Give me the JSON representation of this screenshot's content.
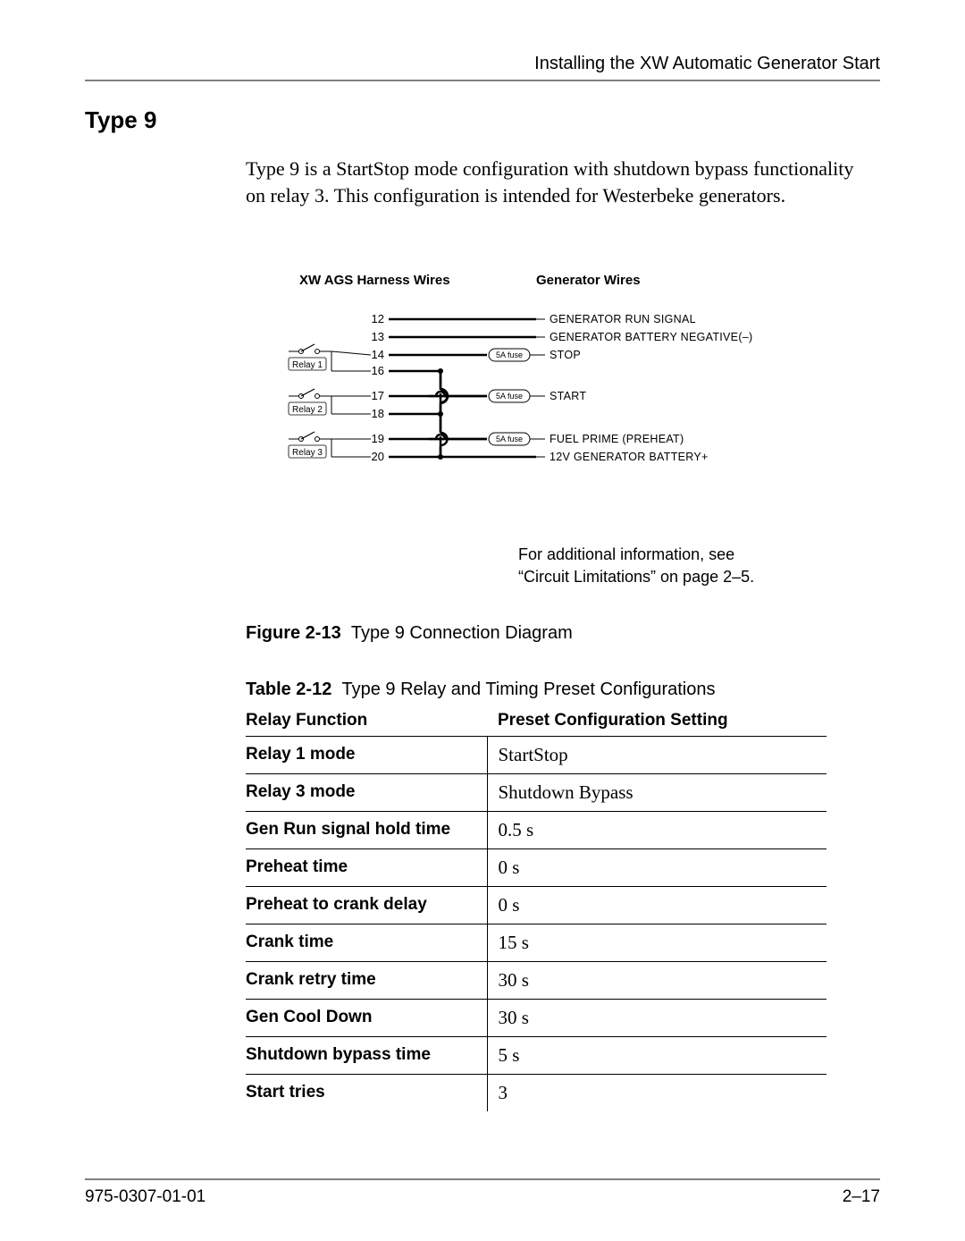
{
  "header": {
    "running_head": "Installing the XW Automatic Generator Start"
  },
  "section": {
    "heading": "Type 9",
    "paragraph": "Type 9 is a StartStop mode configuration with shutdown bypass functionality on relay 3. This configuration is intended for Westerbeke generators."
  },
  "diagram": {
    "left_header": "XW AGS Harness Wires",
    "right_header": "Generator Wires",
    "relays": [
      "Relay 1",
      "Relay 2",
      "Relay 3"
    ],
    "fuse_label": "5A fuse",
    "wires": [
      {
        "num": "12",
        "label": "GENERATOR RUN SIGNAL",
        "has_fuse": false
      },
      {
        "num": "13",
        "label": "GENERATOR BATTERY NEGATIVE(–)",
        "has_fuse": false
      },
      {
        "num": "14",
        "label": "STOP",
        "has_fuse": true
      },
      {
        "num": "16",
        "label": "",
        "has_fuse": false
      },
      {
        "num": "17",
        "label": "START",
        "has_fuse": true
      },
      {
        "num": "18",
        "label": "",
        "has_fuse": false
      },
      {
        "num": "19",
        "label": "FUEL PRIME (PREHEAT)",
        "has_fuse": true
      },
      {
        "num": "20",
        "label": "12V GENERATOR BATTERY+",
        "has_fuse": false
      }
    ],
    "colors": {
      "stroke": "#000000",
      "thin_stroke_width": 1,
      "thick_stroke_width": 2.5
    }
  },
  "note": {
    "line1": "For additional information, see",
    "line2": "“Circuit Limitations” on page 2–5."
  },
  "figure": {
    "prefix": "Figure 2-13",
    "title": "Type 9 Connection Diagram"
  },
  "table": {
    "prefix": "Table 2-12",
    "title": "Type 9 Relay and Timing Preset Configurations",
    "columns": [
      "Relay Function",
      "Preset Configuration Setting"
    ],
    "rows": [
      [
        "Relay 1 mode",
        "StartStop"
      ],
      [
        "Relay 3 mode",
        "Shutdown Bypass"
      ],
      [
        "Gen Run signal hold time",
        "0.5 s"
      ],
      [
        "Preheat time",
        "0 s"
      ],
      [
        "Preheat to crank delay",
        "0 s"
      ],
      [
        "Crank time",
        "15 s"
      ],
      [
        "Crank retry time",
        "30 s"
      ],
      [
        "Gen Cool Down",
        "30 s"
      ],
      [
        "Shutdown bypass time",
        "5 s"
      ],
      [
        "Start tries",
        "3"
      ]
    ]
  },
  "footer": {
    "left": "975-0307-01-01",
    "right": "2–17"
  }
}
